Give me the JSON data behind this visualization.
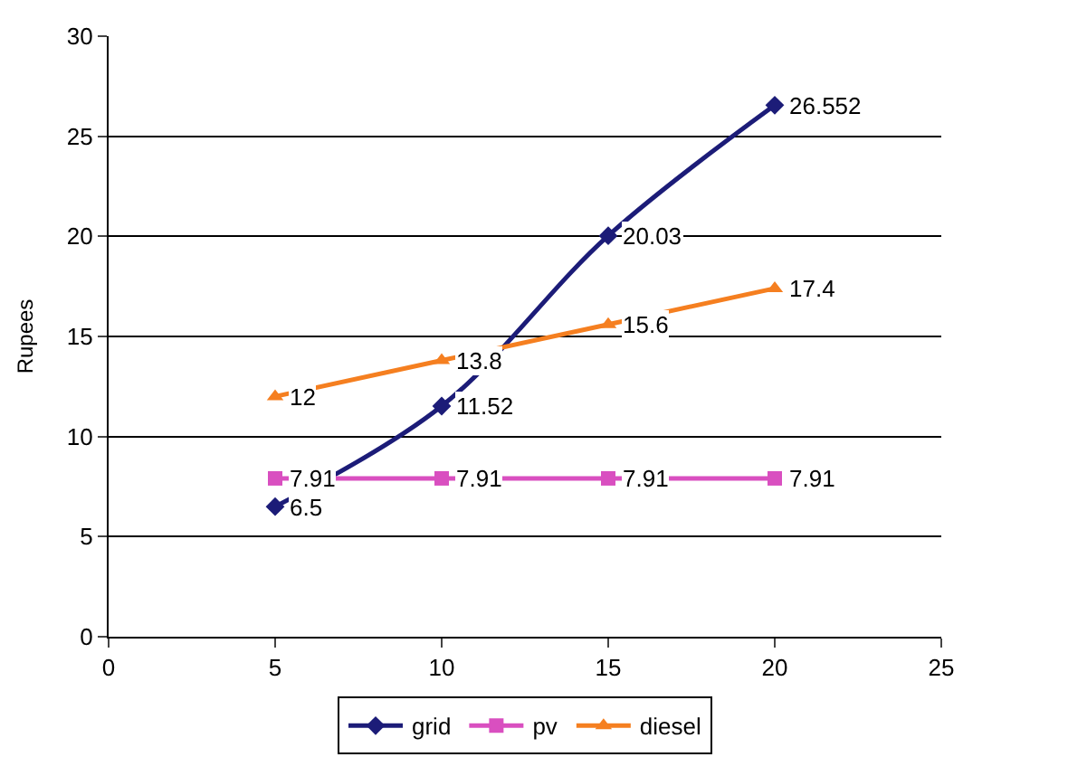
{
  "chart_data": {
    "type": "line",
    "ylabel": "Rupees",
    "x": [
      5,
      10,
      15,
      20
    ],
    "series": [
      {
        "name": "grid",
        "color": "#1c1c78",
        "values": [
          6.5,
          11.52,
          20.03,
          26.552
        ],
        "marker": "diamond"
      },
      {
        "name": "pv",
        "color": "#d94fc0",
        "values": [
          7.91,
          7.91,
          7.91,
          7.91
        ],
        "marker": "square"
      },
      {
        "name": "diesel",
        "color": "#f57f20",
        "values": [
          12,
          13.8,
          15.6,
          17.4
        ],
        "marker": "triangle"
      }
    ],
    "xlim": [
      0,
      25
    ],
    "xticks": [
      0,
      5,
      10,
      15,
      20,
      25
    ],
    "ylim": [
      0,
      30
    ],
    "yticks": [
      0,
      5,
      10,
      15,
      20,
      25,
      30
    ],
    "grid": "y",
    "legend": "bottom",
    "data_labels": true
  }
}
